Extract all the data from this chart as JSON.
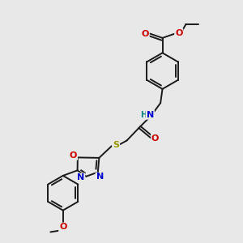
{
  "bg_color": "#e8e8e8",
  "bond_color": "#1a1a1a",
  "N_color": "#0000cc",
  "O_color": "#cc0000",
  "S_color": "#999900",
  "H_color": "#008080",
  "font_size": 8.0,
  "lw": 1.4,
  "figsize": [
    3.0,
    3.0
  ],
  "dpi": 100,
  "xlim": [
    0,
    10
  ],
  "ylim": [
    0,
    10
  ]
}
